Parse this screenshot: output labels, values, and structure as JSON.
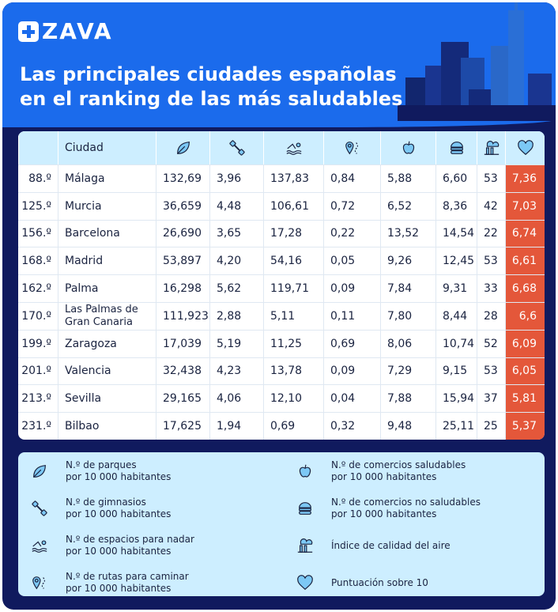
{
  "brand": "ZAVA",
  "title_line1": "Las principales ciudades españolas",
  "title_line2": "en el ranking de las más saludables",
  "table": {
    "city_header": "Ciudad",
    "rows": [
      [
        "88.º",
        "Málaga",
        "132,69",
        "3,96",
        "137,83",
        "0,84",
        "5,88",
        "6,60",
        "53",
        "7,36"
      ],
      [
        "125.º",
        "Murcia",
        "36,659",
        "4,48",
        "106,61",
        "0,72",
        "6,52",
        "8,36",
        "42",
        "7,03"
      ],
      [
        "156.º",
        "Barcelona",
        "26,690",
        "3,65",
        "17,28",
        "0,22",
        "13,52",
        "14,54",
        "22",
        "6,74"
      ],
      [
        "168.º",
        "Madrid",
        "53,897",
        "4,20",
        "54,16",
        "0,05",
        "9,26",
        "12,45",
        "53",
        "6,61"
      ],
      [
        "162.º",
        "Palma",
        "16,298",
        "5,62",
        "119,71",
        "0,09",
        "7,84",
        "9,31",
        "33",
        "6,68"
      ],
      [
        "170.º",
        "Las Palmas de Gran Canaria",
        "111,923",
        "2,88",
        "5,11",
        "0,11",
        "7,80",
        "8,44",
        "28",
        "6,6"
      ],
      [
        "199.º",
        "Zaragoza",
        "17,039",
        "5,19",
        "11,25",
        "0,69",
        "8,06",
        "10,74",
        "52",
        "6,09"
      ],
      [
        "201.º",
        "Valencia",
        "32,438",
        "4,23",
        "13,78",
        "0,09",
        "7,29",
        "9,15",
        "53",
        "6,05"
      ],
      [
        "213.º",
        "Sevilla",
        "29,165",
        "4,06",
        "12,10",
        "0,04",
        "7,88",
        "15,94",
        "37",
        "5,81"
      ],
      [
        "231.º",
        "Bilbao",
        "17,625",
        "1,94",
        "0,69",
        "0,32",
        "9,48",
        "25,11",
        "25",
        "5,37"
      ]
    ]
  },
  "legend": [
    {
      "icon": "leaf-icon",
      "l1": "N.º de parques",
      "l2": "por 10 000 habitantes"
    },
    {
      "icon": "dumbbell-icon",
      "l1": "N.º de gimnasios",
      "l2": "por 10 000 habitantes"
    },
    {
      "icon": "swimmer-icon",
      "l1": "N.º de espacios para nadar",
      "l2": "por 10 000 habitantes"
    },
    {
      "icon": "route-pin-icon",
      "l1": "N.º de rutas para caminar",
      "l2": "por 10 000 habitantes"
    },
    {
      "icon": "apple-icon",
      "l1": "N.º de comercios saludables",
      "l2": "por 10 000 habitantes"
    },
    {
      "icon": "burger-icon",
      "l1": "N.º de comercios no saludables",
      "l2": "por 10 000 habitantes"
    },
    {
      "icon": "factory-icon",
      "l1": "Índice de calidad del aire",
      "l2": ""
    },
    {
      "icon": "heart-icon",
      "l1": "Puntuación sobre 10",
      "l2": ""
    }
  ],
  "colors": {
    "hero": "#1b6bec",
    "navy": "#101a5e",
    "header": "#cdeeff",
    "score": "#e4573a"
  }
}
